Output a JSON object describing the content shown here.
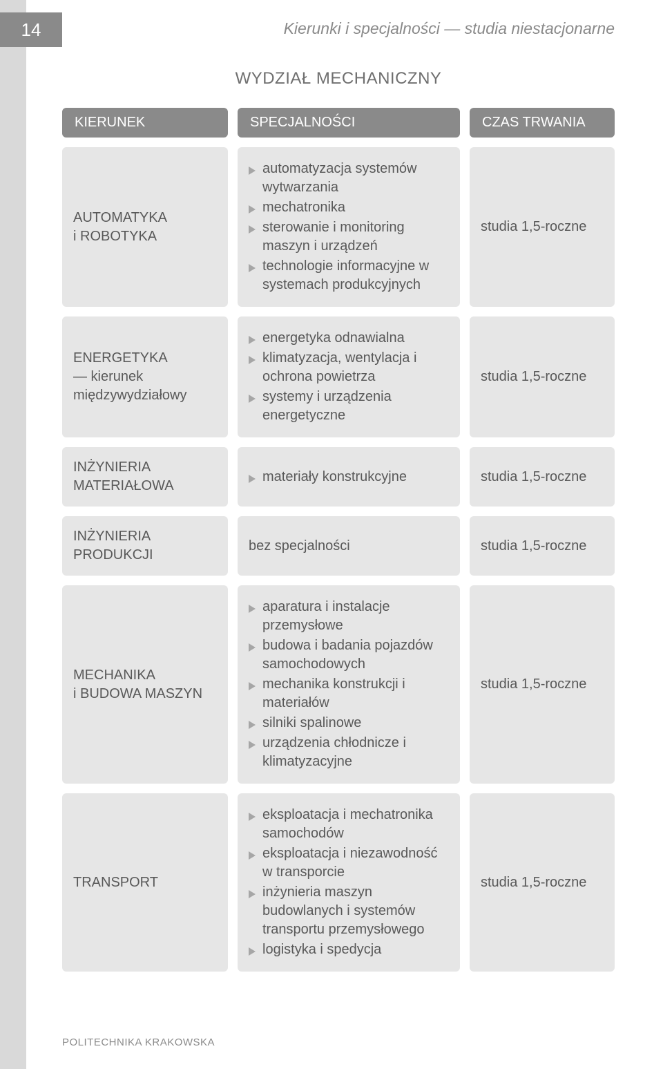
{
  "page_number": "14",
  "header_title": "Kierunki i specjalności — studia niestacjonarne",
  "section_title": "WYDZIAŁ MECHANICZNY",
  "columns": {
    "col1": "KIERUNEK",
    "col2": "SPECJALNOŚCI",
    "col3": "CZAS TRWANIA"
  },
  "rows": [
    {
      "kierunek": "AUTOMATYKA\ni ROBOTYKA",
      "spec_type": "list",
      "spec_items": [
        "automatyzacja systemów wytwarzania",
        "mechatronika",
        "sterowanie i monitoring maszyn i urządzeń",
        "technologie informacyjne w systemach produkcyjnych"
      ],
      "czas": "studia 1,5-roczne"
    },
    {
      "kierunek": "ENERGETYKA\n— kierunek międzywydziałowy",
      "spec_type": "list",
      "spec_items": [
        "energetyka odnawialna",
        "klimatyzacja, wentylacja i ochrona powietrza",
        "systemy i urządzenia energetyczne"
      ],
      "czas": "studia 1,5-roczne"
    },
    {
      "kierunek": "INŻYNIERIA MATERIAŁOWA",
      "spec_type": "list",
      "spec_items": [
        "materiały konstrukcyjne"
      ],
      "czas": "studia 1,5-roczne"
    },
    {
      "kierunek": "INŻYNIERIA PRODUKCJI",
      "spec_type": "text",
      "spec_text": "bez specjalności",
      "czas": "studia 1,5-roczne"
    },
    {
      "kierunek": "MECHANIKA\ni BUDOWA MASZYN",
      "spec_type": "list",
      "spec_items": [
        "aparatura i instalacje przemysłowe",
        "budowa i badania pojazdów samochodowych",
        "mechanika konstrukcji i materiałów",
        "silniki spalinowe",
        "urządzenia chłodnicze i klimatyzacyjne"
      ],
      "czas": "studia 1,5-roczne"
    },
    {
      "kierunek": "TRANSPORT",
      "spec_type": "list",
      "spec_items": [
        "eksploatacja i mechatronika samochodów",
        "eksploatacja i niezawodność w transporcie",
        "inżynieria maszyn budowlanych i systemów transportu przemysłowego",
        "logistyka i spedycja"
      ],
      "czas": "studia 1,5-roczne"
    }
  ],
  "footer": "POLITECHNIKA KRAKOWSKA",
  "colors": {
    "tab_strip": "#d9d9d9",
    "page_number_bg": "#8a8a8a",
    "page_number_fg": "#ffffff",
    "header_title_fg": "#8a8a8a",
    "section_title_fg": "#6f6f6f",
    "head_cell_bg": "#8a8a8a",
    "head_cell_fg": "#ffffff",
    "cell_bg": "#e6e6e6",
    "cell_fg": "#595959",
    "bullet_fg": "#a6a6a6",
    "footer_fg": "#8a8a8a"
  }
}
